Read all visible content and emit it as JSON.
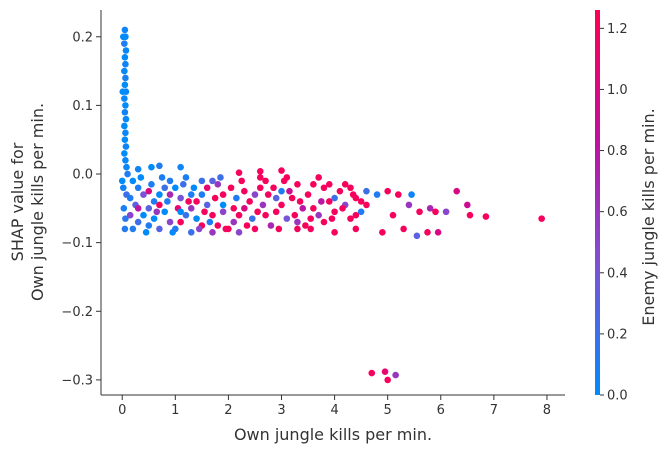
{
  "chart_data": {
    "type": "scatter",
    "title": "",
    "xlabel": "Own jungle kills per min.",
    "ylabel_lines": [
      "SHAP value for",
      "Own jungle kills per min."
    ],
    "colorbar_label": "Enemy jungle kills per min.",
    "xlim": [
      -0.4,
      8.34
    ],
    "ylim": [
      -0.322,
      0.239
    ],
    "x_ticks": [
      0,
      1,
      2,
      3,
      4,
      5,
      6,
      7,
      8
    ],
    "y_ticks": [
      -0.3,
      -0.2,
      -0.1,
      0.0,
      0.1,
      0.2
    ],
    "y_tick_labels": [
      "−0.3",
      "−0.2",
      "−0.1",
      "0.0",
      "0.1",
      "0.2"
    ],
    "colorbar_range": [
      0.0,
      1.26
    ],
    "colorbar_ticks": [
      0.0,
      0.2,
      0.4,
      0.6,
      0.8,
      1.0,
      1.2
    ],
    "colorbar_tick_labels": [
      "0.0",
      "0.2",
      "0.4",
      "0.6",
      "0.8",
      "1.0",
      "1.2"
    ],
    "colormap": [
      "#008bfb",
      "#7c52d6",
      "#c0109e",
      "#ff0052"
    ],
    "grid": false,
    "point_format": [
      "x",
      "shap_value",
      "color_value"
    ],
    "points": [
      [
        0.05,
        0.21,
        0.05
      ],
      [
        0.06,
        0.2,
        0.02
      ],
      [
        0.04,
        0.19,
        0.1
      ],
      [
        0.07,
        0.18,
        0.03
      ],
      [
        0.05,
        0.17,
        0.0
      ],
      [
        0.06,
        0.16,
        0.05
      ],
      [
        0.04,
        0.15,
        0.02
      ],
      [
        0.06,
        0.14,
        0.08
      ],
      [
        0.05,
        0.13,
        0.0
      ],
      [
        0.07,
        0.12,
        0.04
      ],
      [
        0.04,
        0.11,
        0.02
      ],
      [
        0.06,
        0.1,
        0.0
      ],
      [
        0.05,
        0.09,
        0.06
      ],
      [
        0.07,
        0.08,
        0.02
      ],
      [
        0.04,
        0.07,
        0.0
      ],
      [
        0.06,
        0.06,
        0.03
      ],
      [
        0.05,
        0.05,
        0.01
      ],
      [
        0.07,
        0.04,
        0.05
      ],
      [
        0.04,
        0.03,
        0.0
      ],
      [
        0.06,
        0.02,
        0.02
      ],
      [
        0.08,
        0.01,
        0.04
      ],
      [
        0.1,
        0.0,
        0.1
      ],
      [
        0.02,
        -0.02,
        0.05
      ],
      [
        0.03,
        -0.05,
        0.08
      ],
      [
        0.05,
        -0.08,
        0.12
      ],
      [
        0.08,
        -0.03,
        0.2
      ],
      [
        0.06,
        -0.065,
        0.15
      ],
      [
        0.0,
        -0.01,
        0.0
      ],
      [
        0.01,
        0.12,
        0.0
      ],
      [
        0.02,
        0.2,
        0.0
      ],
      [
        0.3,
        0.007,
        0.05
      ],
      [
        0.7,
        0.012,
        0.1
      ],
      [
        1.1,
        0.01,
        0.05
      ],
      [
        0.55,
        0.01,
        0.0
      ],
      [
        0.2,
        -0.08,
        0.1
      ],
      [
        0.3,
        -0.07,
        0.2
      ],
      [
        0.4,
        -0.06,
        0.0
      ],
      [
        0.5,
        -0.05,
        0.3
      ],
      [
        0.6,
        -0.04,
        0.1
      ],
      [
        0.7,
        -0.03,
        0.0
      ],
      [
        0.8,
        -0.02,
        0.2
      ],
      [
        0.9,
        -0.01,
        0.1
      ],
      [
        0.2,
        -0.01,
        0.0
      ],
      [
        0.3,
        -0.02,
        0.1
      ],
      [
        0.4,
        -0.03,
        0.4
      ],
      [
        0.5,
        -0.075,
        0.1
      ],
      [
        0.6,
        -0.065,
        0.0
      ],
      [
        0.7,
        -0.08,
        0.3
      ],
      [
        0.8,
        -0.055,
        0.0
      ],
      [
        0.9,
        -0.07,
        0.5
      ],
      [
        0.25,
        -0.045,
        0.3
      ],
      [
        0.35,
        -0.005,
        0.0
      ],
      [
        0.45,
        -0.085,
        0.0
      ],
      [
        0.55,
        -0.015,
        0.1
      ],
      [
        0.65,
        -0.055,
        0.6
      ],
      [
        0.75,
        -0.005,
        0.1
      ],
      [
        0.85,
        -0.04,
        0.1
      ],
      [
        0.95,
        -0.085,
        0.0
      ],
      [
        0.15,
        -0.035,
        0.1
      ],
      [
        0.15,
        -0.06,
        0.5
      ],
      [
        0.3,
        -0.05,
        0.8
      ],
      [
        0.5,
        -0.025,
        1.0
      ],
      [
        0.7,
        -0.045,
        1.2
      ],
      [
        0.9,
        -0.03,
        0.7
      ],
      [
        1.0,
        -0.08,
        0.1
      ],
      [
        1.1,
        -0.07,
        1.2
      ],
      [
        1.2,
        -0.06,
        0.2
      ],
      [
        1.3,
        -0.05,
        0.6
      ],
      [
        1.4,
        -0.04,
        1.2
      ],
      [
        1.5,
        -0.03,
        0.1
      ],
      [
        1.6,
        -0.02,
        1.1
      ],
      [
        1.7,
        -0.01,
        0.3
      ],
      [
        1.8,
        -0.075,
        1.2
      ],
      [
        1.9,
        -0.055,
        0.5
      ],
      [
        1.0,
        -0.02,
        0.0
      ],
      [
        1.1,
        -0.035,
        0.4
      ],
      [
        1.2,
        -0.005,
        0.1
      ],
      [
        1.3,
        -0.085,
        0.2
      ],
      [
        1.4,
        -0.065,
        0.0
      ],
      [
        1.5,
        -0.075,
        1.2
      ],
      [
        1.6,
        -0.045,
        0.3
      ],
      [
        1.7,
        -0.06,
        1.2
      ],
      [
        1.8,
        -0.015,
        0.6
      ],
      [
        1.9,
        -0.03,
        1.2
      ],
      [
        1.05,
        -0.05,
        1.1
      ],
      [
        1.15,
        -0.015,
        0.2
      ],
      [
        1.25,
        -0.04,
        1.2
      ],
      [
        1.35,
        -0.02,
        0.0
      ],
      [
        1.45,
        -0.08,
        0.5
      ],
      [
        1.55,
        -0.055,
        1.2
      ],
      [
        1.65,
        -0.07,
        0.1
      ],
      [
        1.75,
        -0.035,
        1.2
      ],
      [
        1.85,
        -0.005,
        0.2
      ],
      [
        1.95,
        -0.08,
        1.2
      ],
      [
        1.1,
        -0.055,
        0.0
      ],
      [
        1.3,
        -0.03,
        0.1
      ],
      [
        1.5,
        -0.01,
        0.2
      ],
      [
        1.7,
        -0.085,
        0.6
      ],
      [
        1.9,
        -0.045,
        0.0
      ],
      [
        2.0,
        -0.08,
        1.2
      ],
      [
        2.1,
        -0.07,
        0.6
      ],
      [
        2.2,
        -0.06,
        1.2
      ],
      [
        2.3,
        -0.05,
        1.0
      ],
      [
        2.4,
        -0.04,
        1.2
      ],
      [
        2.5,
        -0.03,
        0.5
      ],
      [
        2.6,
        -0.02,
        1.2
      ],
      [
        2.7,
        -0.01,
        1.2
      ],
      [
        2.8,
        -0.075,
        0.7
      ],
      [
        2.9,
        -0.055,
        1.2
      ],
      [
        3.0,
        -0.045,
        1.2
      ],
      [
        3.1,
        -0.065,
        0.4
      ],
      [
        3.2,
        -0.035,
        1.2
      ],
      [
        3.3,
        -0.015,
        1.2
      ],
      [
        3.4,
        -0.05,
        0.8
      ],
      [
        2.05,
        -0.02,
        1.2
      ],
      [
        2.15,
        -0.035,
        0.1
      ],
      [
        2.25,
        -0.01,
        1.2
      ],
      [
        2.35,
        -0.075,
        1.2
      ],
      [
        2.45,
        -0.065,
        0.2
      ],
      [
        2.55,
        -0.055,
        1.2
      ],
      [
        2.65,
        -0.045,
        0.6
      ],
      [
        2.75,
        -0.03,
        1.2
      ],
      [
        2.85,
        -0.02,
        1.2
      ],
      [
        2.95,
        -0.08,
        1.2
      ],
      [
        3.05,
        -0.01,
        1.2
      ],
      [
        3.15,
        -0.025,
        0.9
      ],
      [
        3.25,
        -0.06,
        1.2
      ],
      [
        3.35,
        -0.04,
        1.2
      ],
      [
        3.45,
        -0.075,
        1.2
      ],
      [
        2.1,
        -0.05,
        1.2
      ],
      [
        2.3,
        -0.025,
        1.2
      ],
      [
        2.5,
        -0.08,
        1.2
      ],
      [
        2.7,
        -0.06,
        1.2
      ],
      [
        2.9,
        -0.035,
        0.3
      ],
      [
        3.1,
        -0.005,
        1.2
      ],
      [
        3.3,
        -0.07,
        0.6
      ],
      [
        2.2,
        -0.085,
        0.5
      ],
      [
        2.6,
        -0.005,
        1.2
      ],
      [
        3.0,
        -0.025,
        0.1
      ],
      [
        3.5,
        -0.03,
        1.2
      ],
      [
        3.6,
        -0.05,
        1.2
      ],
      [
        3.7,
        -0.06,
        0.6
      ],
      [
        3.8,
        -0.02,
        1.2
      ],
      [
        3.9,
        -0.04,
        1.2
      ],
      [
        4.0,
        -0.055,
        1.2
      ],
      [
        4.1,
        -0.025,
        1.2
      ],
      [
        4.2,
        -0.045,
        0.5
      ],
      [
        4.3,
        -0.065,
        1.2
      ],
      [
        4.4,
        -0.035,
        1.2
      ],
      [
        4.5,
        -0.055,
        0.1
      ],
      [
        4.6,
        -0.045,
        1.2
      ],
      [
        3.6,
        -0.015,
        1.2
      ],
      [
        3.8,
        -0.07,
        1.2
      ],
      [
        4.0,
        -0.035,
        0.2
      ],
      [
        4.2,
        -0.015,
        1.2
      ],
      [
        4.4,
        -0.06,
        1.2
      ],
      [
        3.55,
        -0.065,
        1.2
      ],
      [
        3.75,
        -0.04,
        0.8
      ],
      [
        3.95,
        -0.065,
        1.2
      ],
      [
        4.15,
        -0.05,
        1.2
      ],
      [
        4.35,
        -0.03,
        1.2
      ],
      [
        4.7,
        -0.29,
        1.2
      ],
      [
        4.95,
        -0.288,
        1.1
      ],
      [
        5.0,
        -0.3,
        1.2
      ],
      [
        5.15,
        -0.293,
        0.6
      ],
      [
        7.9,
        -0.065,
        1.2
      ],
      [
        6.85,
        -0.062,
        1.2
      ],
      [
        6.3,
        -0.025,
        1.0
      ],
      [
        6.5,
        -0.045,
        0.9
      ],
      [
        6.55,
        -0.06,
        1.2
      ],
      [
        6.1,
        -0.055,
        0.5
      ],
      [
        5.95,
        -0.085,
        1.0
      ],
      [
        5.75,
        -0.085,
        1.2
      ],
      [
        5.55,
        -0.09,
        0.3
      ],
      [
        5.1,
        -0.06,
        1.2
      ],
      [
        5.3,
        -0.08,
        1.2
      ],
      [
        4.9,
        -0.085,
        1.2
      ],
      [
        4.4,
        -0.08,
        1.2
      ],
      [
        4.0,
        -0.085,
        1.2
      ],
      [
        3.55,
        -0.08,
        1.2
      ],
      [
        3.3,
        -0.08,
        1.2
      ],
      [
        5.6,
        -0.055,
        1.2
      ],
      [
        5.4,
        -0.045,
        0.6
      ],
      [
        5.2,
        -0.03,
        1.2
      ],
      [
        5.0,
        -0.025,
        1.2
      ],
      [
        4.8,
        -0.03,
        0.1
      ],
      [
        4.6,
        -0.025,
        0.2
      ],
      [
        4.3,
        -0.02,
        1.2
      ],
      [
        4.5,
        -0.04,
        1.2
      ],
      [
        3.9,
        -0.015,
        1.2
      ],
      [
        3.7,
        -0.005,
        1.2
      ],
      [
        3.0,
        0.005,
        1.2
      ],
      [
        2.6,
        0.004,
        1.2
      ],
      [
        2.2,
        0.002,
        1.2
      ],
      [
        5.45,
        -0.03,
        0.05
      ],
      [
        5.8,
        -0.05,
        0.7
      ],
      [
        5.9,
        -0.055,
        1.2
      ]
    ]
  }
}
